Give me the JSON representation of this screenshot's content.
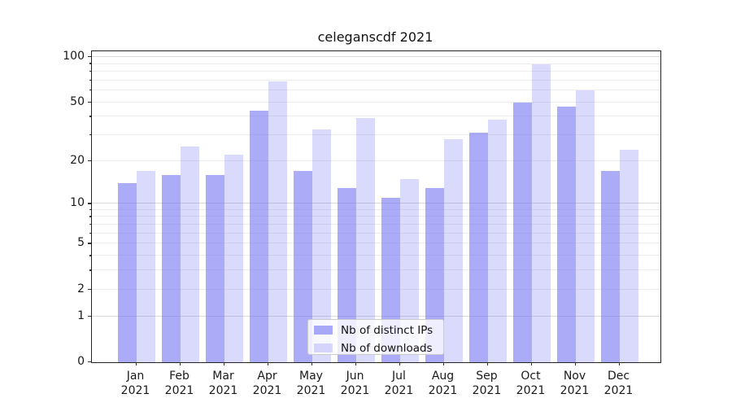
{
  "chart_data": {
    "type": "bar",
    "title": "celeganscdf 2021",
    "categories": [
      "Jan 2021",
      "Feb 2021",
      "Mar 2021",
      "Apr 2021",
      "May 2021",
      "Jun 2021",
      "Jul 2021",
      "Aug 2021",
      "Sep 2021",
      "Oct 2021",
      "Nov 2021",
      "Dec 2021"
    ],
    "series": [
      {
        "name": "Nb of distinct IPs",
        "values": [
          14,
          16,
          16,
          44,
          17,
          13,
          11,
          13,
          31,
          50,
          47,
          17
        ],
        "color": "rgba(120,120,244,0.62)"
      },
      {
        "name": "Nb of downloads",
        "values": [
          17,
          25,
          22,
          69,
          33,
          39,
          15,
          28,
          38,
          90,
          60,
          24
        ],
        "color": "rgba(120,120,244,0.27)"
      }
    ],
    "xlabel": "",
    "ylabel": "",
    "yscale": "log1p",
    "ylim": [
      0,
      109
    ],
    "yticks": [
      0,
      1,
      2,
      5,
      10,
      20,
      50,
      100
    ],
    "yticks_minor": [
      3,
      4,
      6,
      7,
      8,
      9,
      30,
      40,
      60,
      70,
      80,
      90
    ],
    "grid": "on",
    "legend_position": "lower center",
    "colors": {
      "grid_major": "#d9d9d9",
      "grid_minor": "#ececec",
      "spine": "#222222",
      "tick_text": "#1a1a1a",
      "legend_border": "#cccccc",
      "legend_bg": "rgba(255,255,255,0.8)"
    }
  }
}
